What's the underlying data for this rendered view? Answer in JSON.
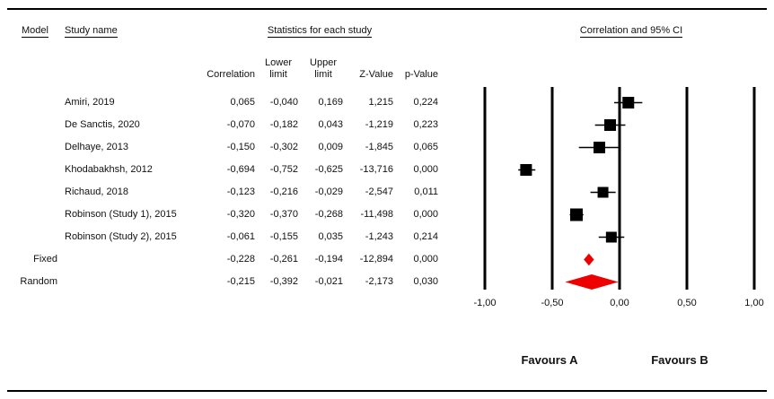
{
  "header": {
    "model": "Model",
    "study_name": "Study name",
    "stats": "Statistics for each study",
    "plot": "Correlation and 95% CI",
    "sub": {
      "correlation": "Correlation",
      "lower_line1": "Lower",
      "lower_line2": "limit",
      "upper_line1": "Upper",
      "upper_line2": "limit",
      "z_value": "Z-Value",
      "p_value": "p-Value"
    }
  },
  "footer": {
    "favours_a": "Favours A",
    "favours_b": "Favours B"
  },
  "chart_data": {
    "type": "forest",
    "title": "Correlation and 95% CI",
    "xlim": [
      -1.0,
      1.0
    ],
    "ticks": [
      {
        "value": -1.0,
        "label": "-1,00"
      },
      {
        "value": -0.5,
        "label": "-0,50"
      },
      {
        "value": 0.0,
        "label": "0,00"
      },
      {
        "value": 0.5,
        "label": "0,50"
      },
      {
        "value": 1.0,
        "label": "1,00"
      }
    ],
    "colors": {
      "square": "#000000",
      "diamond": "#ee0000",
      "line": "#000000",
      "whisker": "#000000"
    },
    "rows": [
      {
        "model": "",
        "study": "Amiri, 2019",
        "correlation": "0,065",
        "lower": "-0,040",
        "upper": "0,169",
        "z": "1,215",
        "p": "0,224",
        "point": 0.065,
        "ci": [
          -0.04,
          0.169
        ],
        "marker": "square",
        "size": 13
      },
      {
        "model": "",
        "study": "De Sanctis, 2020",
        "correlation": "-0,070",
        "lower": "-0,182",
        "upper": "0,043",
        "z": "-1,219",
        "p": "0,223",
        "point": -0.07,
        "ci": [
          -0.182,
          0.043
        ],
        "marker": "square",
        "size": 13
      },
      {
        "model": "",
        "study": "Delhaye, 2013",
        "correlation": "-0,150",
        "lower": "-0,302",
        "upper": "0,009",
        "z": "-1,845",
        "p": "0,065",
        "point": -0.15,
        "ci": [
          -0.302,
          0.009
        ],
        "marker": "square",
        "size": 13
      },
      {
        "model": "",
        "study": "Khodabakhsh, 2012",
        "correlation": "-0,694",
        "lower": "-0,752",
        "upper": "-0,625",
        "z": "-13,716",
        "p": "0,000",
        "point": -0.694,
        "ci": [
          -0.752,
          -0.625
        ],
        "marker": "square",
        "size": 13
      },
      {
        "model": "",
        "study": "Richaud, 2018",
        "correlation": "-0,123",
        "lower": "-0,216",
        "upper": "-0,029",
        "z": "-2,547",
        "p": "0,011",
        "point": -0.123,
        "ci": [
          -0.216,
          -0.029
        ],
        "marker": "square",
        "size": 12
      },
      {
        "model": "",
        "study": "Robinson (Study 1), 2015",
        "correlation": "-0,320",
        "lower": "-0,370",
        "upper": "-0,268",
        "z": "-11,498",
        "p": "0,000",
        "point": -0.32,
        "ci": [
          -0.37,
          -0.268
        ],
        "marker": "square",
        "size": 14
      },
      {
        "model": "",
        "study": "Robinson (Study 2), 2015",
        "correlation": "-0,061",
        "lower": "-0,155",
        "upper": "0,035",
        "z": "-1,243",
        "p": "0,214",
        "point": -0.061,
        "ci": [
          -0.155,
          0.035
        ],
        "marker": "square",
        "size": 12
      },
      {
        "model": "Fixed",
        "study": "",
        "correlation": "-0,228",
        "lower": "-0,261",
        "upper": "-0,194",
        "z": "-12,894",
        "p": "0,000",
        "point": -0.228,
        "ci": [
          -0.261,
          -0.194
        ],
        "marker": "diamond",
        "size": 12
      },
      {
        "model": "Random",
        "study": "",
        "correlation": "-0,215",
        "lower": "-0,392",
        "upper": "-0,021",
        "z": "-2,173",
        "p": "0,030",
        "point": -0.215,
        "ci": [
          -0.392,
          -0.021
        ],
        "marker": "diamond",
        "size": 16
      }
    ]
  }
}
